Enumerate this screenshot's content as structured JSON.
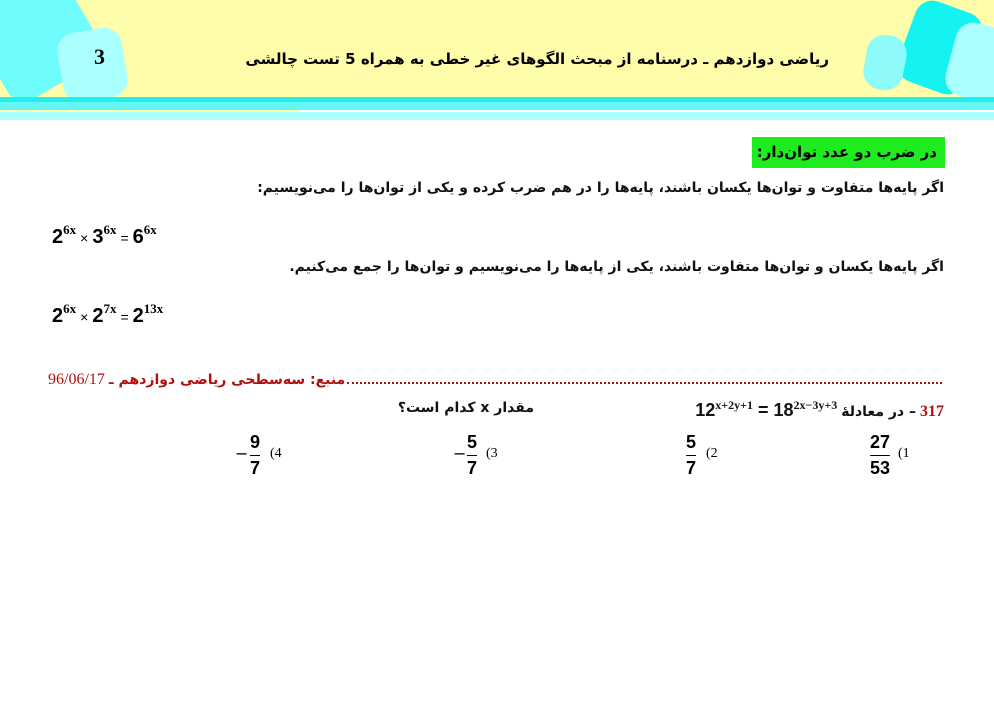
{
  "header": {
    "page_number": "3",
    "title": "ریاضی دوازدهم ـ درسنامه از مبحث الگوهای غیر خطی به همراه 5 تست چالشی"
  },
  "section": {
    "heading": "در ضرب دو عدد توان‌دار:",
    "rule1": "اگر پایه‌ها متفاوت و توان‌ها یکسان باشند، پایه‌ها را در هم ضرب کرده و یکی از توان‌ها را می‌نویسیم:",
    "example1": {
      "a": "2",
      "ae": "6x",
      "op": "×",
      "b": "3",
      "be": "6x",
      "eq": "=",
      "c": "6",
      "ce": "6x"
    },
    "rule2": "اگر پایه‌ها یکسان و توان‌ها متفاوت باشند، یکی از پایه‌ها را می‌نویسیم و توان‌ها را جمع می‌کنیم.",
    "example2": {
      "a": "2",
      "ae": "6x",
      "op": "×",
      "b": "2",
      "be": "7x",
      "eq": "=",
      "c": "2",
      "ce": "13x"
    }
  },
  "source": {
    "label": "منبع: سه‌سطحی ریاضی دوازدهم ـ",
    "date": "96/06/17"
  },
  "question": {
    "number": "317",
    "prefix": "– در معادلهٔ",
    "lhs": "12",
    "lhs_exp": "x+2y+1",
    "eq": "=",
    "rhs": "18",
    "rhs_exp": "2x−3y+3",
    "suffix": "مقدار x کدام است؟",
    "options": [
      {
        "label": "(1",
        "sign": "",
        "num": "27",
        "den": "53"
      },
      {
        "label": "(2",
        "sign": "",
        "num": "5",
        "den": "7"
      },
      {
        "label": "(3",
        "sign": "−",
        "num": "5",
        "den": "7"
      },
      {
        "label": "(4",
        "sign": "−",
        "num": "9",
        "den": "7"
      }
    ]
  },
  "colors": {
    "header_bg": "#fffcaa",
    "cyan": "#66ffff",
    "green": "#1fec1f",
    "source_red": "#b01010"
  }
}
